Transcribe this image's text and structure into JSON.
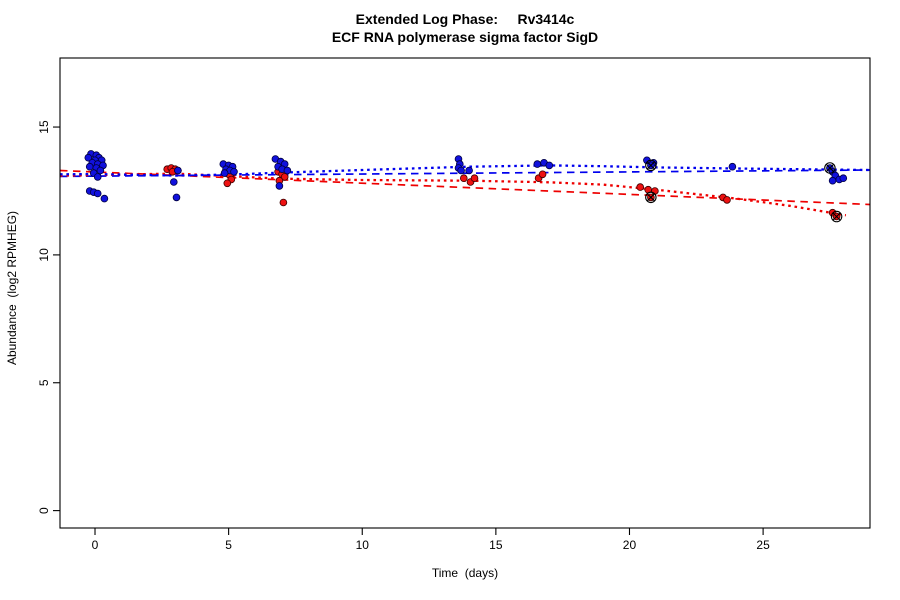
{
  "figure": {
    "title_line1": "Extended Log Phase:     Rv3414c",
    "title_line2": "ECF RNA polymerase sigma factor SigD"
  },
  "chart_data": {
    "type": "scatter",
    "title": "Extended Log Phase:     Rv3414c",
    "subtitle": "ECF RNA polymerase sigma factor SigD",
    "xlabel": "Time  (days)",
    "ylabel": "Abundance  (log2 RPMHEG)",
    "x_ticks": [
      0,
      5,
      10,
      15,
      20,
      25
    ],
    "y_ticks": [
      0,
      5,
      10,
      15
    ],
    "xlim": [
      -1.31,
      29.0
    ],
    "ylim": [
      -0.68,
      17.7
    ],
    "grid": false,
    "legend": "none",
    "point_radius": 3.4,
    "series": [
      {
        "name": "red-replicates",
        "color": "#EE1111",
        "edge": "#3a0000",
        "points": [
          [
            2.7,
            13.35
          ],
          [
            2.85,
            13.4
          ],
          [
            3.0,
            13.35
          ],
          [
            2.9,
            13.25
          ],
          [
            3.1,
            13.3
          ],
          [
            4.9,
            13.2
          ],
          [
            5.05,
            13.1
          ],
          [
            5.1,
            12.95
          ],
          [
            4.95,
            12.8
          ],
          [
            6.85,
            13.25
          ],
          [
            7.0,
            13.15
          ],
          [
            7.1,
            13.05
          ],
          [
            6.9,
            12.9
          ],
          [
            7.05,
            12.05
          ],
          [
            13.8,
            13.0
          ],
          [
            14.05,
            12.85
          ],
          [
            14.2,
            13.0
          ],
          [
            16.6,
            13.0
          ],
          [
            16.75,
            13.15
          ],
          [
            20.4,
            12.65
          ],
          [
            20.7,
            12.55
          ],
          [
            20.95,
            12.5
          ],
          [
            20.8,
            12.25
          ],
          [
            23.5,
            12.25
          ],
          [
            23.65,
            12.15
          ],
          [
            27.6,
            11.65
          ],
          [
            27.75,
            11.5
          ]
        ]
      },
      {
        "name": "blue-replicates",
        "color": "#1111DD",
        "edge": "#000040",
        "points": [
          [
            -0.15,
            13.95
          ],
          [
            0.05,
            13.9
          ],
          [
            -0.25,
            13.8
          ],
          [
            0.15,
            13.8
          ],
          [
            0.0,
            13.7
          ],
          [
            0.25,
            13.7
          ],
          [
            -0.1,
            13.6
          ],
          [
            0.1,
            13.55
          ],
          [
            0.3,
            13.5
          ],
          [
            -0.2,
            13.45
          ],
          [
            0.05,
            13.4
          ],
          [
            0.2,
            13.3
          ],
          [
            -0.05,
            13.2
          ],
          [
            0.1,
            13.05
          ],
          [
            -0.2,
            12.5
          ],
          [
            -0.05,
            12.45
          ],
          [
            0.1,
            12.4
          ],
          [
            0.35,
            12.2
          ],
          [
            2.95,
            12.85
          ],
          [
            3.05,
            12.25
          ],
          [
            3.1,
            13.3
          ],
          [
            4.8,
            13.55
          ],
          [
            5.0,
            13.5
          ],
          [
            5.15,
            13.45
          ],
          [
            4.9,
            13.35
          ],
          [
            5.05,
            13.3
          ],
          [
            5.2,
            13.25
          ],
          [
            4.85,
            13.2
          ],
          [
            6.75,
            13.75
          ],
          [
            6.95,
            13.65
          ],
          [
            7.1,
            13.55
          ],
          [
            6.85,
            13.45
          ],
          [
            7.0,
            13.35
          ],
          [
            7.2,
            13.3
          ],
          [
            6.9,
            12.7
          ],
          [
            13.6,
            13.75
          ],
          [
            13.65,
            13.55
          ],
          [
            13.6,
            13.4
          ],
          [
            13.7,
            13.3
          ],
          [
            14.0,
            13.3
          ],
          [
            16.55,
            13.55
          ],
          [
            16.8,
            13.6
          ],
          [
            17.0,
            13.5
          ],
          [
            20.65,
            13.7
          ],
          [
            20.9,
            13.6
          ],
          [
            20.8,
            13.5
          ],
          [
            23.85,
            13.45
          ],
          [
            27.5,
            13.4
          ],
          [
            27.6,
            13.25
          ],
          [
            27.7,
            13.1
          ],
          [
            27.85,
            12.95
          ],
          [
            28.0,
            13.0
          ],
          [
            27.6,
            12.9
          ]
        ]
      }
    ],
    "fit_lines": [
      {
        "name": "red-linear-fit-dashed",
        "color": "#EE0000",
        "style": "dashed",
        "points": [
          [
            -1.31,
            13.3
          ],
          [
            29.0,
            11.97
          ]
        ]
      },
      {
        "name": "blue-linear-fit-dashed",
        "color": "#0000EE",
        "style": "dashed",
        "points": [
          [
            -1.31,
            13.07
          ],
          [
            29.0,
            13.32
          ]
        ]
      },
      {
        "name": "red-loess-fit-dotted",
        "color": "#EE0000",
        "style": "dotted",
        "points": [
          [
            -1.31,
            13.1
          ],
          [
            0,
            13.12
          ],
          [
            3,
            13.18
          ],
          [
            5,
            13.08
          ],
          [
            7,
            12.98
          ],
          [
            10,
            12.93
          ],
          [
            14,
            12.9
          ],
          [
            17,
            12.84
          ],
          [
            19,
            12.75
          ],
          [
            21,
            12.55
          ],
          [
            24,
            12.2
          ],
          [
            26,
            11.92
          ],
          [
            28.1,
            11.55
          ]
        ]
      },
      {
        "name": "blue-loess-fit-dotted",
        "color": "#0000EE",
        "style": "dotted",
        "points": [
          [
            -1.31,
            13.15
          ],
          [
            0,
            13.16
          ],
          [
            3,
            13.1
          ],
          [
            5,
            13.14
          ],
          [
            7,
            13.22
          ],
          [
            10,
            13.32
          ],
          [
            14,
            13.45
          ],
          [
            17,
            13.5
          ],
          [
            19,
            13.47
          ],
          [
            21,
            13.42
          ],
          [
            24,
            13.38
          ],
          [
            28,
            13.33
          ],
          [
            29.0,
            13.32
          ]
        ]
      }
    ],
    "flagged_points": [
      {
        "x": 20.8,
        "y": 13.5
      },
      {
        "x": 20.8,
        "y": 12.25
      },
      {
        "x": 27.5,
        "y": 13.4
      },
      {
        "x": 27.75,
        "y": 11.5
      }
    ]
  }
}
